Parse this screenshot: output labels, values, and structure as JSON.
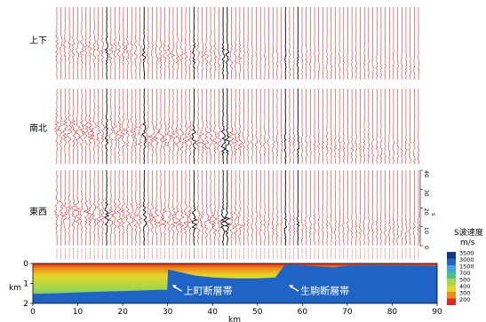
{
  "chart_data": [
    {
      "type": "line",
      "name": "seismic-record-section",
      "panels": [
        {
          "id": "ud",
          "label": "上下"
        },
        {
          "id": "ns",
          "label": "南北"
        },
        {
          "id": "ew",
          "label": "東西"
        }
      ],
      "time_axis": {
        "ticks": [
          0,
          10,
          20,
          30,
          40
        ],
        "label": "s"
      },
      "station_count": 88,
      "trace_color": "#e8191c",
      "highlight_color": "#000000"
    },
    {
      "type": "heatmap",
      "name": "S-wave-velocity-model",
      "title": "",
      "xlabel": "km",
      "ylabel": "km",
      "xlim": [
        0,
        90
      ],
      "ylim": [
        0,
        2
      ],
      "xticks": [
        0,
        10,
        20,
        30,
        40,
        50,
        60,
        70,
        80,
        90
      ],
      "yticks": [
        0,
        1,
        2
      ],
      "colorbar": {
        "title": "S波速度",
        "unit": "m/s",
        "levels": [
          3500,
          3000,
          1500,
          700,
          500,
          400,
          300,
          200
        ],
        "colors": [
          "#0b3a8c",
          "#1f63c4",
          "#3fa4e0",
          "#46c090",
          "#a9d64a",
          "#e6d52a",
          "#f08a1a",
          "#dd2a1a"
        ]
      },
      "basement_depth_km": [
        [
          0,
          1.52
        ],
        [
          5,
          1.5
        ],
        [
          10,
          1.45
        ],
        [
          15,
          1.42
        ],
        [
          20,
          1.38
        ],
        [
          25,
          1.35
        ],
        [
          28,
          1.32
        ],
        [
          29.9,
          1.32
        ],
        [
          30.1,
          0.3
        ],
        [
          33,
          0.45
        ],
        [
          36,
          0.6
        ],
        [
          40,
          0.7
        ],
        [
          45,
          0.75
        ],
        [
          50,
          0.75
        ],
        [
          54,
          0.7
        ],
        [
          56,
          0.1
        ],
        [
          57,
          0.05
        ],
        [
          62,
          0.12
        ],
        [
          67,
          0.2
        ],
        [
          70,
          0.1
        ],
        [
          75,
          0.08
        ],
        [
          80,
          0.09
        ],
        [
          85,
          0.1
        ],
        [
          90,
          0.12
        ]
      ],
      "annotations": [
        {
          "text": "上町断層帯",
          "x": 30
        },
        {
          "text": "生駒断層帯",
          "x": 56
        }
      ]
    }
  ]
}
